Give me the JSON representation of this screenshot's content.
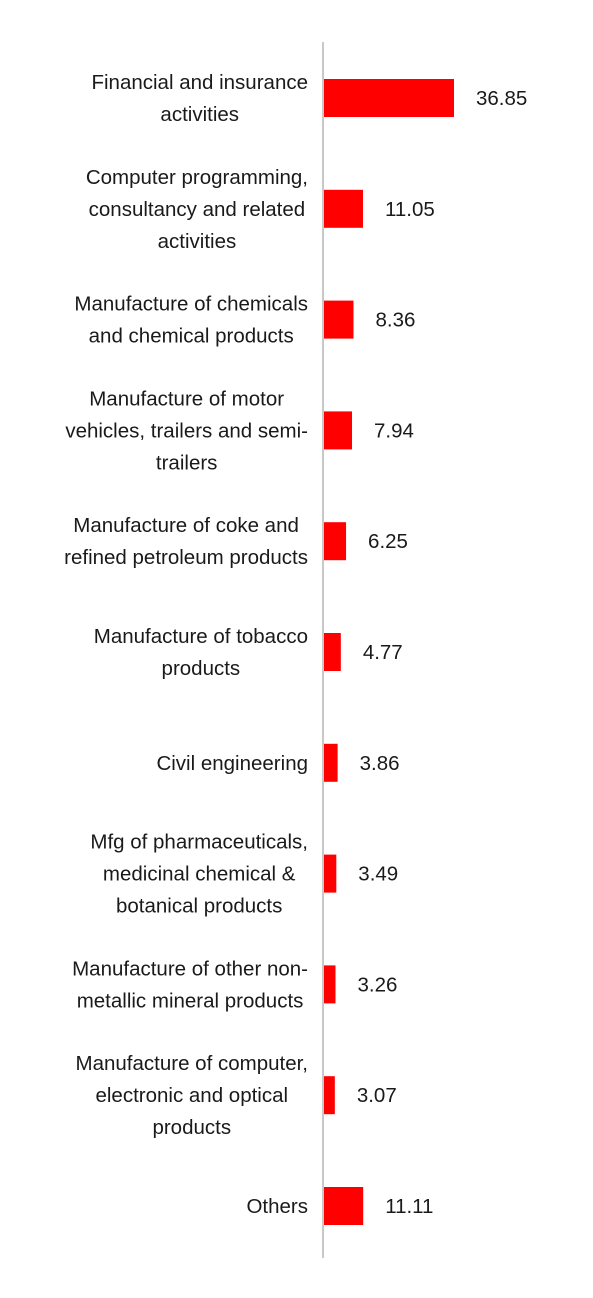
{
  "chart_data": {
    "type": "bar",
    "orientation": "horizontal",
    "title": "",
    "xlabel": "",
    "ylabel": "",
    "bar_color": "#ff0000",
    "axis_color": "#c8c8c8",
    "grid": false,
    "legend": "none",
    "xlim": [
      0,
      40
    ],
    "categories": [
      [
        "Financial and insurance",
        "activities"
      ],
      [
        "Computer programming,",
        "consultancy and related",
        "activities"
      ],
      [
        "Manufacture of chemicals",
        "and chemical products"
      ],
      [
        "Manufacture of motor",
        "vehicles, trailers and semi-",
        "trailers"
      ],
      [
        "Manufacture of coke and",
        "refined petroleum products"
      ],
      [
        "Manufacture of tobacco",
        "products"
      ],
      [
        "Civil engineering"
      ],
      [
        "Mfg of pharmaceuticals,",
        "medicinal chemical &",
        "botanical products"
      ],
      [
        "Manufacture of other non-",
        "metallic mineral products"
      ],
      [
        "Manufacture of computer,",
        "electronic and optical",
        "products"
      ],
      [
        "Others"
      ]
    ],
    "values": [
      36.85,
      11.05,
      8.36,
      7.94,
      6.25,
      4.77,
      3.86,
      3.49,
      3.26,
      3.07,
      11.11
    ],
    "value_labels": [
      "36.85",
      "11.05",
      "8.36",
      "7.94",
      "6.25",
      "4.77",
      "3.86",
      "3.49",
      "3.26",
      "3.07",
      "11.11"
    ]
  }
}
